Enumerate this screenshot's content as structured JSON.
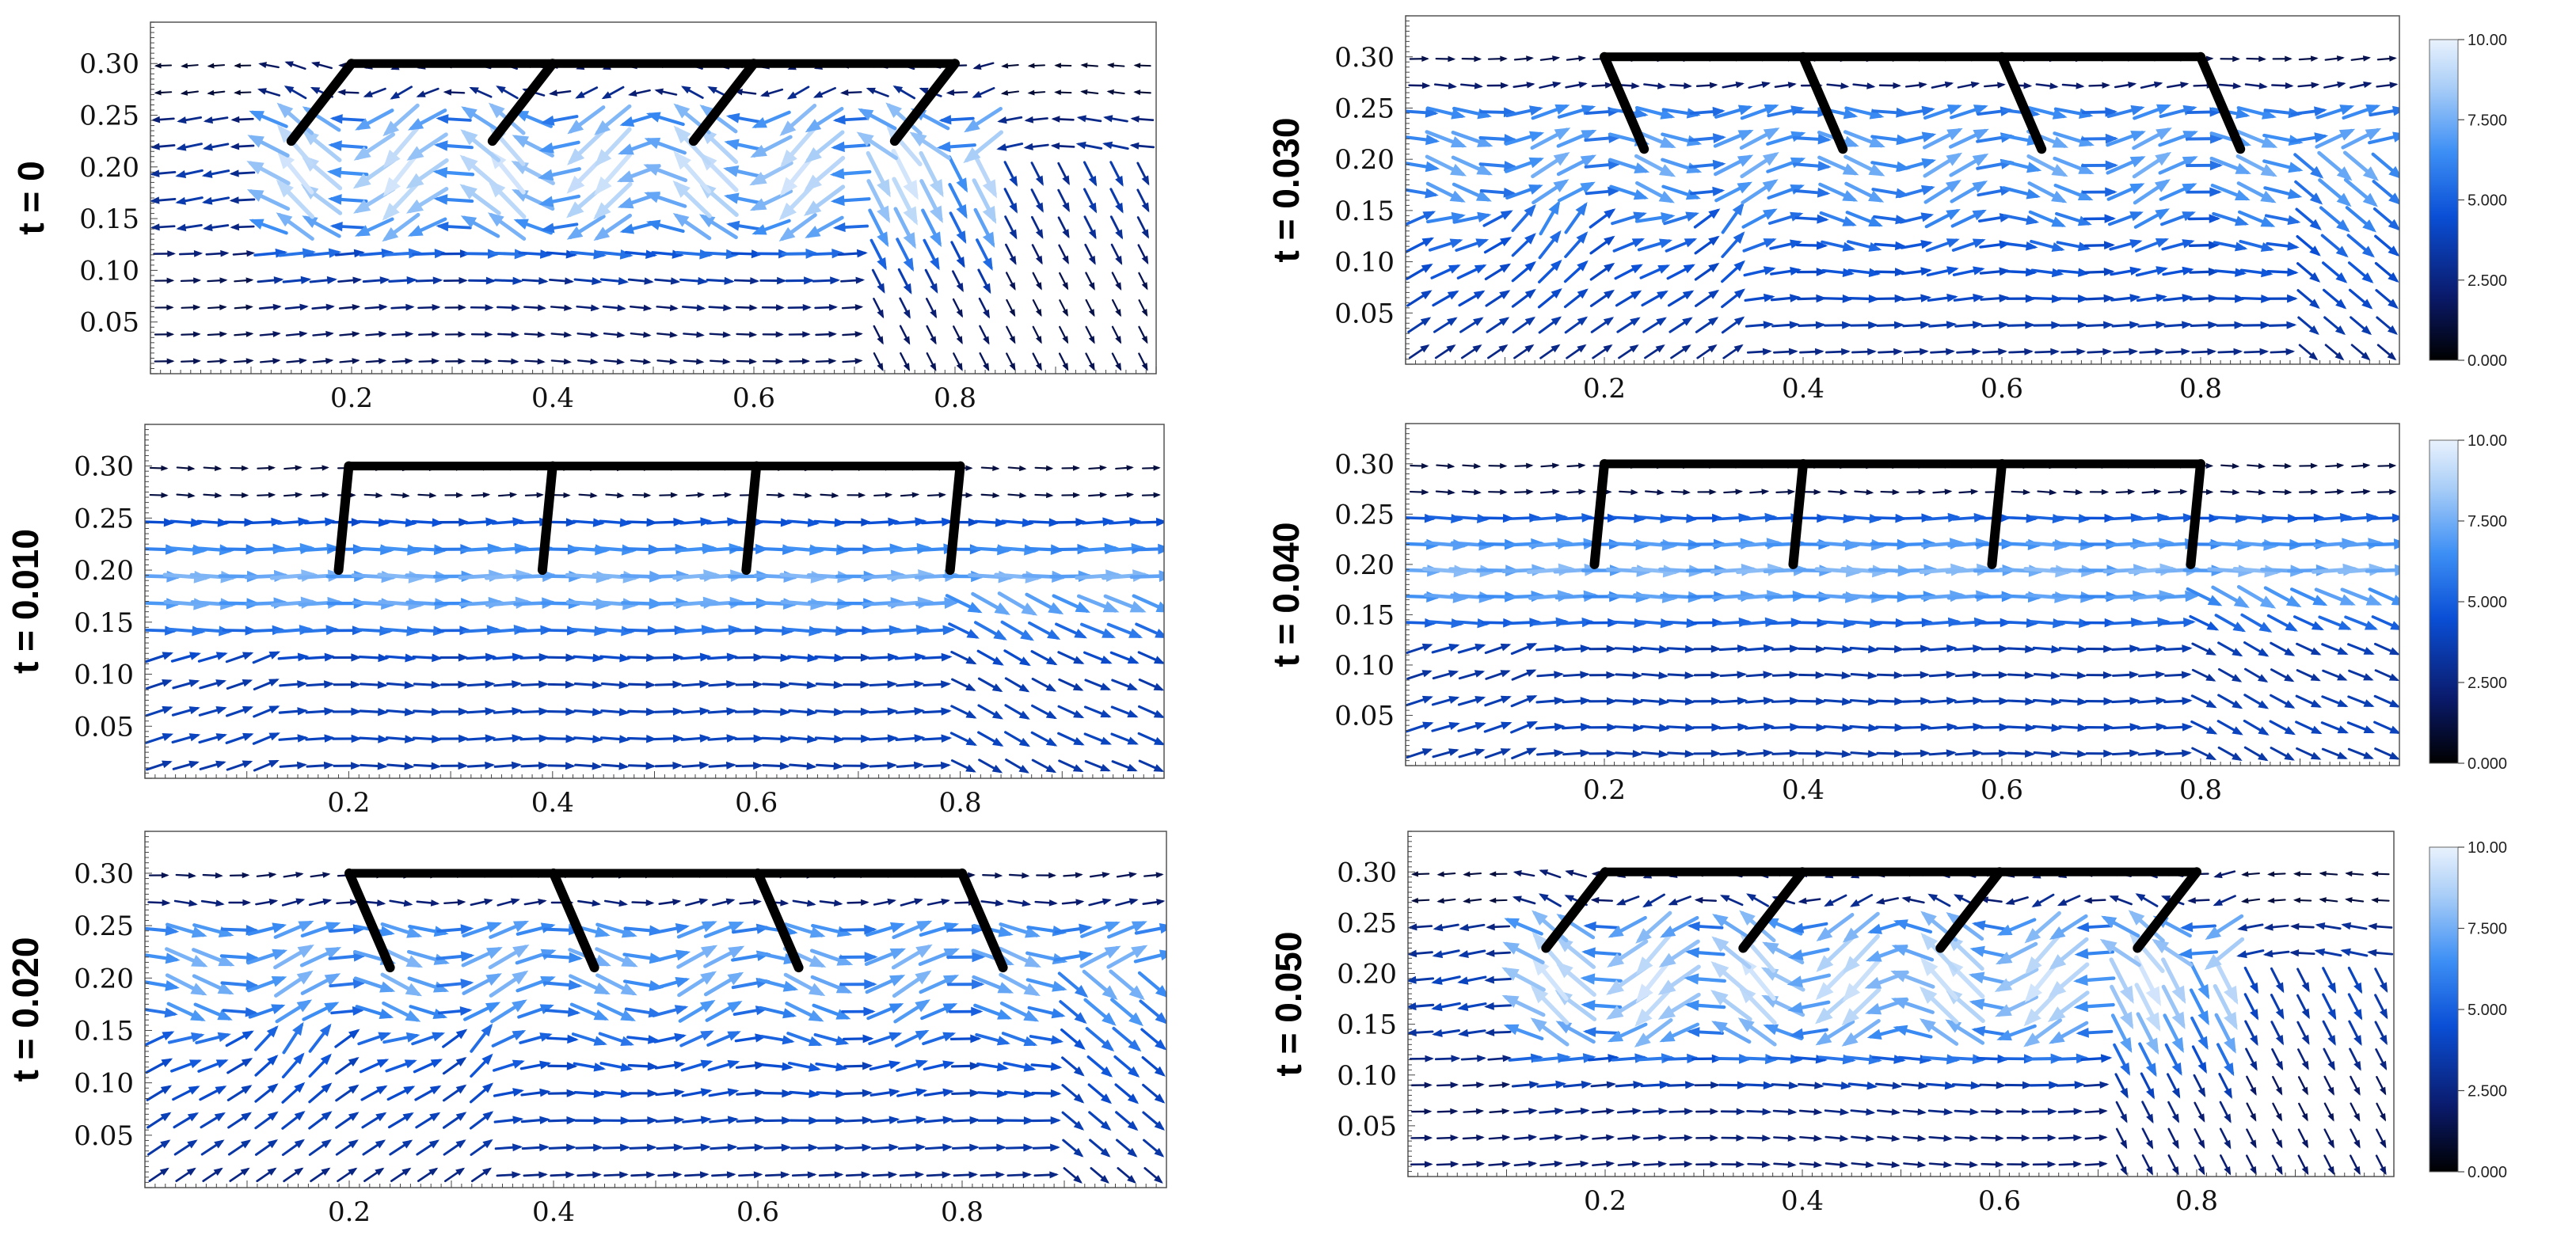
{
  "figure": {
    "description_title": "",
    "colormap": {
      "name": "Blues",
      "colors": [
        "#000000",
        "#0a1a6b",
        "#0a4fd6",
        "#3d8ff5",
        "#a8cdf7",
        "#e9f2fd"
      ]
    },
    "colorbar": {
      "min": 0,
      "max": 10,
      "tick_labels": [
        "0.000",
        "2.500",
        "5.000",
        "7.500",
        "10.00"
      ]
    },
    "structure_color": "#000000"
  },
  "chart_data": [
    {
      "type": "quiver",
      "panel": "t0",
      "ylabel": "t = 0",
      "xlim": [
        0,
        1
      ],
      "ylim": [
        0,
        0.34
      ],
      "xticks": [
        "0.2",
        "0.4",
        "0.6",
        "0.8"
      ],
      "yticks": [
        "0.05",
        "0.10",
        "0.15",
        "0.20",
        "0.25",
        "0.30"
      ],
      "structure": {
        "top_y": 0.3,
        "top_x": [
          0.2,
          0.8
        ],
        "legs": [
          {
            "x_top": 0.2,
            "x_bottom": 0.14,
            "y_bottom": 0.225
          },
          {
            "x_top": 0.4,
            "x_bottom": 0.34,
            "y_bottom": 0.225
          },
          {
            "x_top": 0.6,
            "x_bottom": 0.54,
            "y_bottom": 0.225
          },
          {
            "x_top": 0.8,
            "x_bottom": 0.74,
            "y_bottom": 0.225
          }
        ]
      },
      "field": {
        "mode": "wave",
        "level_ambient": 1.5,
        "level_peak": 9.5,
        "wave_center_y": 0.2,
        "wave_halfwidth": 0.07
      },
      "colorbar": false
    },
    {
      "type": "quiver",
      "panel": "t030",
      "ylabel": "t = 0.030",
      "xlim": [
        0,
        1
      ],
      "ylim": [
        0,
        0.34
      ],
      "xticks": [
        "0.2",
        "0.4",
        "0.6",
        "0.8"
      ],
      "yticks": [
        "0.05",
        "0.10",
        "0.15",
        "0.20",
        "0.25",
        "0.30"
      ],
      "structure": {
        "top_y": 0.3,
        "top_x": [
          0.2,
          0.8
        ],
        "legs": [
          {
            "x_top": 0.2,
            "x_bottom": 0.24,
            "y_bottom": 0.21
          },
          {
            "x_top": 0.4,
            "x_bottom": 0.44,
            "y_bottom": 0.21
          },
          {
            "x_top": 0.6,
            "x_bottom": 0.64,
            "y_bottom": 0.21
          },
          {
            "x_top": 0.8,
            "x_bottom": 0.84,
            "y_bottom": 0.21
          }
        ]
      },
      "field": {
        "mode": "rise",
        "level_ambient": 3,
        "level_peak": 8.5,
        "wave_center_y": 0.18,
        "wave_halfwidth": 0.06
      },
      "colorbar": true
    },
    {
      "type": "quiver",
      "panel": "t010",
      "ylabel": "t = 0.010",
      "xlim": [
        0,
        1
      ],
      "ylim": [
        0,
        0.34
      ],
      "xticks": [
        "0.2",
        "0.4",
        "0.6",
        "0.8"
      ],
      "yticks": [
        "0.05",
        "0.10",
        "0.15",
        "0.20",
        "0.25",
        "0.30"
      ],
      "structure": {
        "top_y": 0.3,
        "top_x": [
          0.2,
          0.8
        ],
        "legs": [
          {
            "x_top": 0.2,
            "x_bottom": 0.19,
            "y_bottom": 0.2
          },
          {
            "x_top": 0.4,
            "x_bottom": 0.39,
            "y_bottom": 0.2
          },
          {
            "x_top": 0.6,
            "x_bottom": 0.59,
            "y_bottom": 0.2
          },
          {
            "x_top": 0.8,
            "x_bottom": 0.79,
            "y_bottom": 0.2
          }
        ]
      },
      "field": {
        "mode": "flat",
        "level_ambient": 3.5,
        "level_peak": 7.5,
        "wave_center_y": 0.18,
        "wave_halfwidth": 0.05
      },
      "colorbar": false
    },
    {
      "type": "quiver",
      "panel": "t040",
      "ylabel": "t = 0.040",
      "xlim": [
        0,
        1
      ],
      "ylim": [
        0,
        0.34
      ],
      "xticks": [
        "0.2",
        "0.4",
        "0.6",
        "0.8"
      ],
      "yticks": [
        "0.05",
        "0.10",
        "0.15",
        "0.20",
        "0.25",
        "0.30"
      ],
      "structure": {
        "top_y": 0.3,
        "top_x": [
          0.2,
          0.8
        ],
        "legs": [
          {
            "x_top": 0.2,
            "x_bottom": 0.19,
            "y_bottom": 0.2
          },
          {
            "x_top": 0.4,
            "x_bottom": 0.39,
            "y_bottom": 0.2
          },
          {
            "x_top": 0.6,
            "x_bottom": 0.59,
            "y_bottom": 0.2
          },
          {
            "x_top": 0.8,
            "x_bottom": 0.79,
            "y_bottom": 0.2
          }
        ]
      },
      "field": {
        "mode": "flat",
        "level_ambient": 3.5,
        "level_peak": 7.5,
        "wave_center_y": 0.19,
        "wave_halfwidth": 0.05
      },
      "colorbar": true
    },
    {
      "type": "quiver",
      "panel": "t020",
      "ylabel": "t = 0.020",
      "xlim": [
        0,
        1
      ],
      "ylim": [
        0,
        0.34
      ],
      "xticks": [
        "0.2",
        "0.4",
        "0.6",
        "0.8"
      ],
      "yticks": [
        "0.05",
        "0.10",
        "0.15",
        "0.20",
        "0.25",
        "0.30"
      ],
      "structure": {
        "top_y": 0.3,
        "top_x": [
          0.2,
          0.8
        ],
        "legs": [
          {
            "x_top": 0.2,
            "x_bottom": 0.24,
            "y_bottom": 0.21
          },
          {
            "x_top": 0.4,
            "x_bottom": 0.44,
            "y_bottom": 0.21
          },
          {
            "x_top": 0.6,
            "x_bottom": 0.64,
            "y_bottom": 0.21
          },
          {
            "x_top": 0.8,
            "x_bottom": 0.84,
            "y_bottom": 0.21
          }
        ]
      },
      "field": {
        "mode": "rise",
        "level_ambient": 3,
        "level_peak": 8.5,
        "wave_center_y": 0.19,
        "wave_halfwidth": 0.06
      },
      "colorbar": false
    },
    {
      "type": "quiver",
      "panel": "t050",
      "ylabel": "t = 0.050",
      "xlim": [
        0,
        1
      ],
      "ylim": [
        0,
        0.34
      ],
      "xticks": [
        "0.2",
        "0.4",
        "0.6",
        "0.8"
      ],
      "yticks": [
        "0.05",
        "0.10",
        "0.15",
        "0.20",
        "0.25",
        "0.30"
      ],
      "structure": {
        "top_y": 0.3,
        "top_x": [
          0.2,
          0.8
        ],
        "legs": [
          {
            "x_top": 0.2,
            "x_bottom": 0.14,
            "y_bottom": 0.225
          },
          {
            "x_top": 0.4,
            "x_bottom": 0.34,
            "y_bottom": 0.225
          },
          {
            "x_top": 0.6,
            "x_bottom": 0.54,
            "y_bottom": 0.225
          },
          {
            "x_top": 0.8,
            "x_bottom": 0.74,
            "y_bottom": 0.225
          }
        ]
      },
      "field": {
        "mode": "wave",
        "level_ambient": 2,
        "level_peak": 9.5,
        "wave_center_y": 0.2,
        "wave_halfwidth": 0.07
      },
      "colorbar": true
    }
  ]
}
